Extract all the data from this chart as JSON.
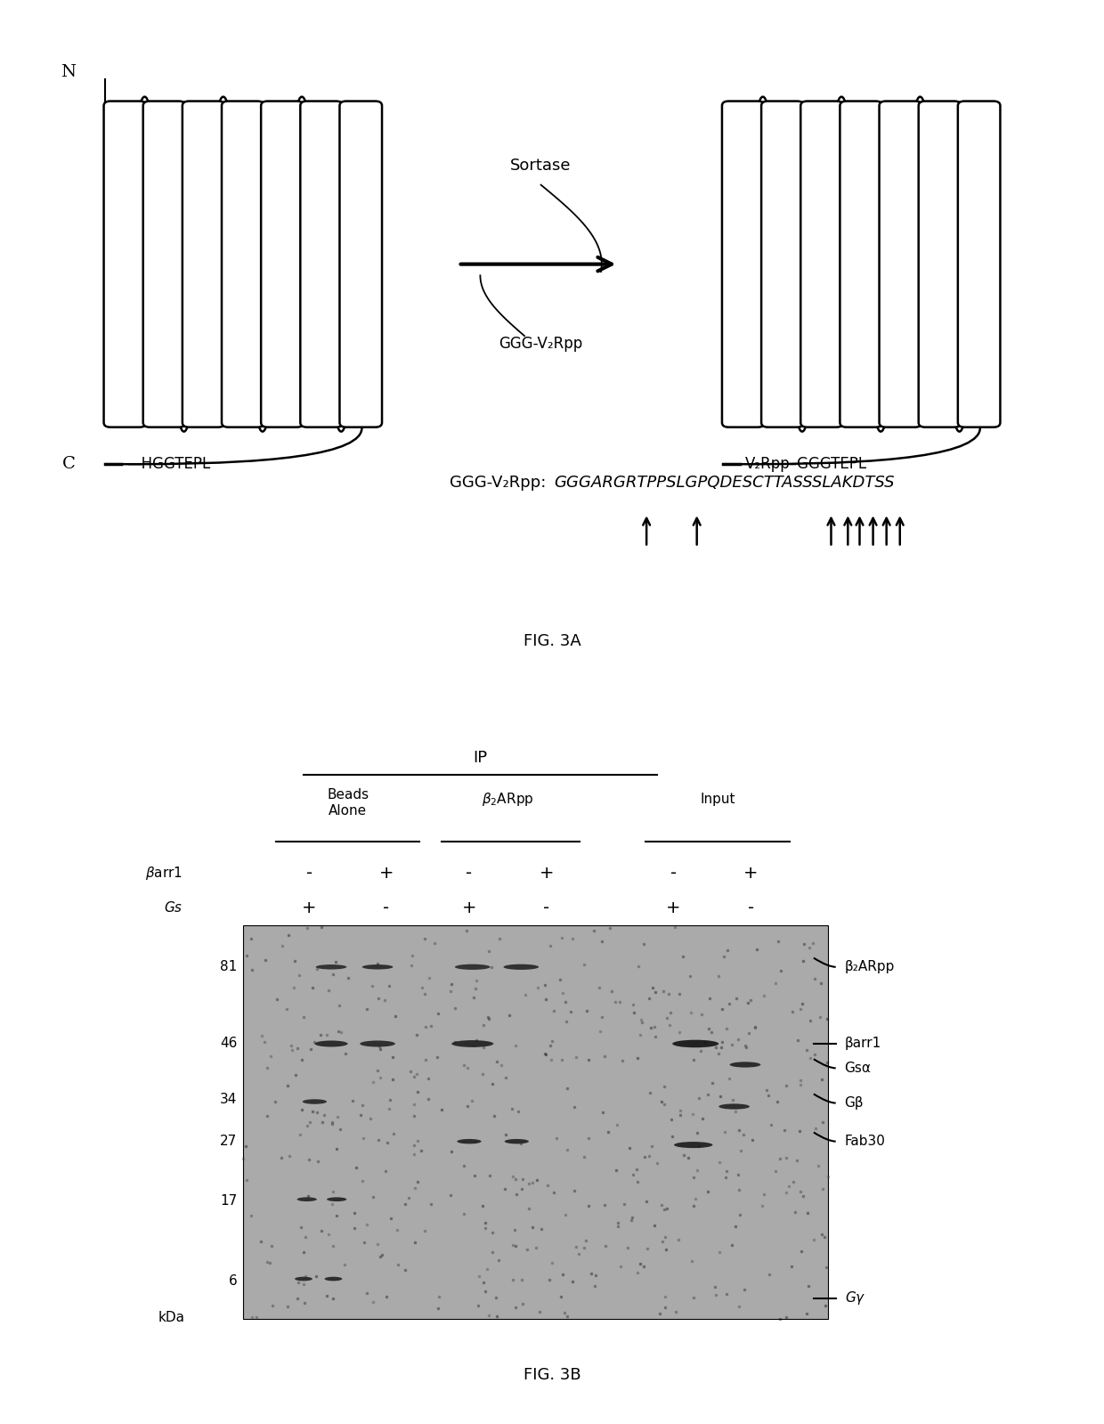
{
  "fig_width": 12.4,
  "fig_height": 15.99,
  "background_color": "#ffffff",
  "panel_a": {
    "title": "FIG. 3A",
    "sortase_label": "Sortase",
    "ggg_label": "GGG-V₂Rpp",
    "n_label": "N",
    "c_label": "C",
    "c_tail_left": "HGGTEPL",
    "right_c_tail_left": "V₂Rpp",
    "right_c_tail_right": "GGGTEPL",
    "sequence_prefix": "GGG-V₂Rpp:",
    "sequence_italic": "GGGARGRTPPSLGPQDESCTTASSSLAKDTSS"
  },
  "panel_b": {
    "title": "FIG. 3B",
    "ip_label": "IP",
    "beads_alone": "Beads\nAlone",
    "b2arpp_label": "β₂ARpp",
    "input_label": "Input",
    "barr1_label": "βarr1",
    "gs_label": "Gs",
    "barr1_signs": [
      "-",
      "+",
      "-",
      "+",
      "-",
      "+"
    ],
    "gs_signs": [
      "+",
      "-",
      "+",
      "-",
      "+",
      "-"
    ],
    "mw_labels": [
      "81",
      "46",
      "34",
      "27",
      "17",
      "6"
    ],
    "mw_y": [
      6.55,
      5.45,
      4.65,
      4.05,
      3.2,
      2.05
    ],
    "right_labels": [
      "β₂ARpp",
      "βarr1",
      "Gsα",
      "Gβ",
      "Fab30",
      "Gγ"
    ],
    "right_y": [
      6.55,
      5.45,
      5.1,
      4.6,
      4.05,
      1.8
    ],
    "right_marker": [
      "curve",
      "line",
      "curve",
      "curve",
      "curve",
      "line"
    ],
    "sign_x": [
      2.8,
      3.5,
      4.25,
      4.95,
      6.1,
      6.8
    ]
  }
}
